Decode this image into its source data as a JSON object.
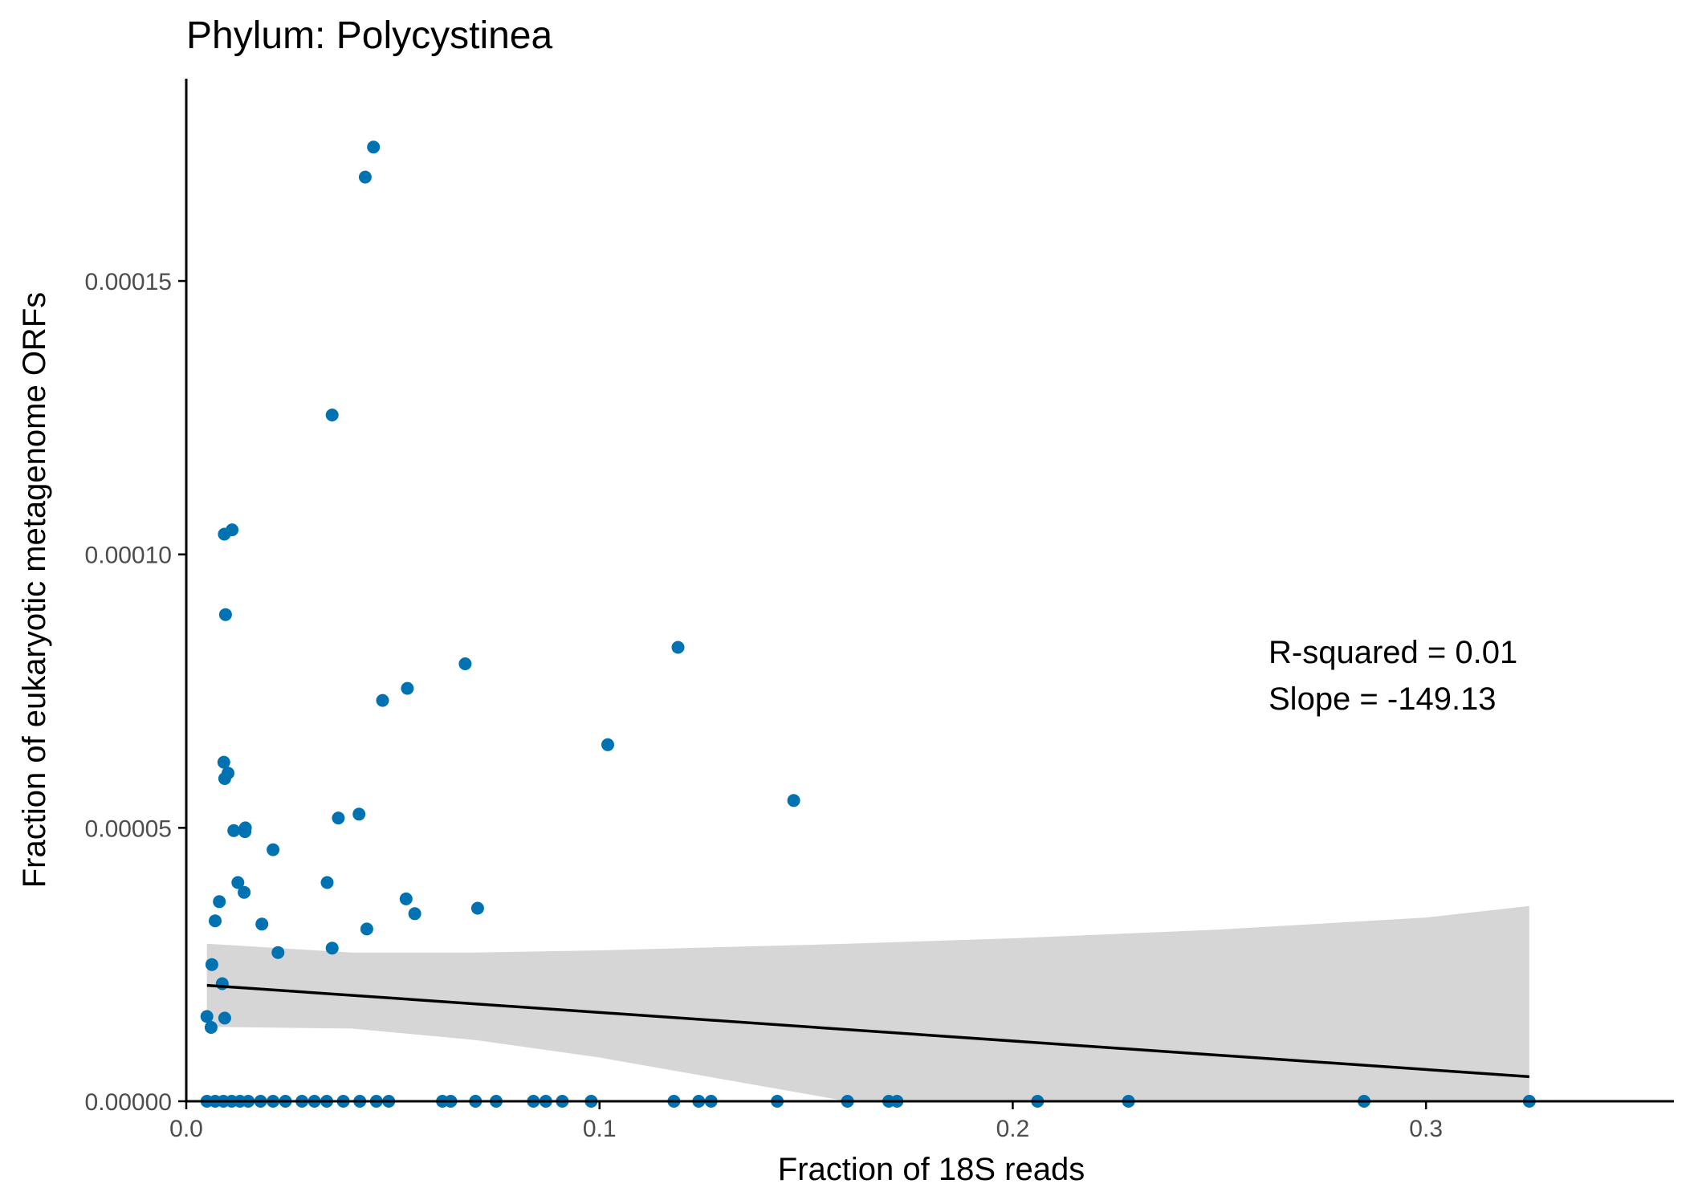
{
  "chart_data": {
    "type": "scatter",
    "title": "Phylum:  Polycystinea",
    "xlabel": "Fraction of 18S reads",
    "ylabel": "Fraction of eukaryotic metagenome ORFs",
    "xlim": [
      0.0,
      0.36
    ],
    "ylim": [
      0.0,
      0.000187
    ],
    "x_ticks": [
      0.0,
      0.1,
      0.2,
      0.3
    ],
    "x_tick_labels": [
      "0.0",
      "0.1",
      "0.2",
      "0.3"
    ],
    "y_ticks": [
      0.0,
      5e-05,
      0.0001,
      0.00015
    ],
    "y_tick_labels": [
      "0.00000",
      "0.00005",
      "0.00010",
      "0.00015"
    ],
    "grid": false,
    "colors": {
      "points": "#0072B2",
      "fit_line": "#000000",
      "confidence_band": "#D4D4D4"
    },
    "annotations": [
      "R-squared =  0.01",
      "Slope =  -149.13"
    ],
    "points": {
      "x": [
        0.0453,
        0.0433,
        0.0353,
        0.0111,
        0.0092,
        0.0095,
        0.119,
        0.0675,
        0.0535,
        0.0475,
        0.102,
        0.0091,
        0.0101,
        0.0093,
        0.147,
        0.0418,
        0.0368,
        0.0143,
        0.0115,
        0.0142,
        0.021,
        0.0125,
        0.0341,
        0.014,
        0.0532,
        0.008,
        0.0705,
        0.0553,
        0.007,
        0.0183,
        0.0437,
        0.0353,
        0.0222,
        0.0062,
        0.0087,
        0.005,
        0.0093,
        0.006,
        0.005,
        0.007,
        0.009,
        0.011,
        0.013,
        0.015,
        0.018,
        0.021,
        0.024,
        0.028,
        0.031,
        0.034,
        0.038,
        0.042,
        0.046,
        0.049,
        0.062,
        0.064,
        0.07,
        0.075,
        0.084,
        0.087,
        0.091,
        0.098,
        0.118,
        0.124,
        0.127,
        0.143,
        0.16,
        0.17,
        0.172,
        0.206,
        0.228,
        0.285,
        0.325
      ],
      "y": [
        0.0001745,
        0.000169,
        0.0001255,
        0.0001045,
        0.0001037,
        8.9e-05,
        8.3e-05,
        8e-05,
        7.55e-05,
        7.33e-05,
        6.52e-05,
        6.2e-05,
        6e-05,
        5.9e-05,
        5.5e-05,
        5.25e-05,
        5.18e-05,
        5e-05,
        4.95e-05,
        4.93e-05,
        4.6e-05,
        4e-05,
        4e-05,
        3.82e-05,
        3.7e-05,
        3.65e-05,
        3.53e-05,
        3.43e-05,
        3.3e-05,
        3.24e-05,
        3.15e-05,
        2.8e-05,
        2.72e-05,
        2.5e-05,
        2.15e-05,
        1.55e-05,
        1.52e-05,
        1.35e-05,
        0,
        0,
        0,
        0,
        0,
        0,
        0,
        0,
        0,
        0,
        0,
        0,
        0,
        0,
        0,
        0,
        0,
        0,
        0,
        0,
        0,
        0,
        0,
        0,
        0,
        0,
        0,
        0,
        0,
        0,
        0,
        0,
        0,
        0,
        0
      ]
    },
    "fit_line": {
      "x": [
        0.005,
        0.325
      ],
      "y": [
        2.12e-05,
        4.5e-06
      ]
    },
    "confidence_band": {
      "x": [
        0.005,
        0.04,
        0.07,
        0.1,
        0.13,
        0.16,
        0.2,
        0.25,
        0.3,
        0.325
      ],
      "upper": [
        2.88e-05,
        2.72e-05,
        2.72e-05,
        2.76e-05,
        2.82e-05,
        2.88e-05,
        2.98e-05,
        3.14e-05,
        3.36e-05,
        3.57e-05
      ],
      "lower": [
        1.36e-05,
        1.33e-05,
        1.12e-05,
        8e-06,
        4e-06,
        0.0,
        0.0,
        0.0,
        0.0,
        0.0
      ]
    }
  }
}
